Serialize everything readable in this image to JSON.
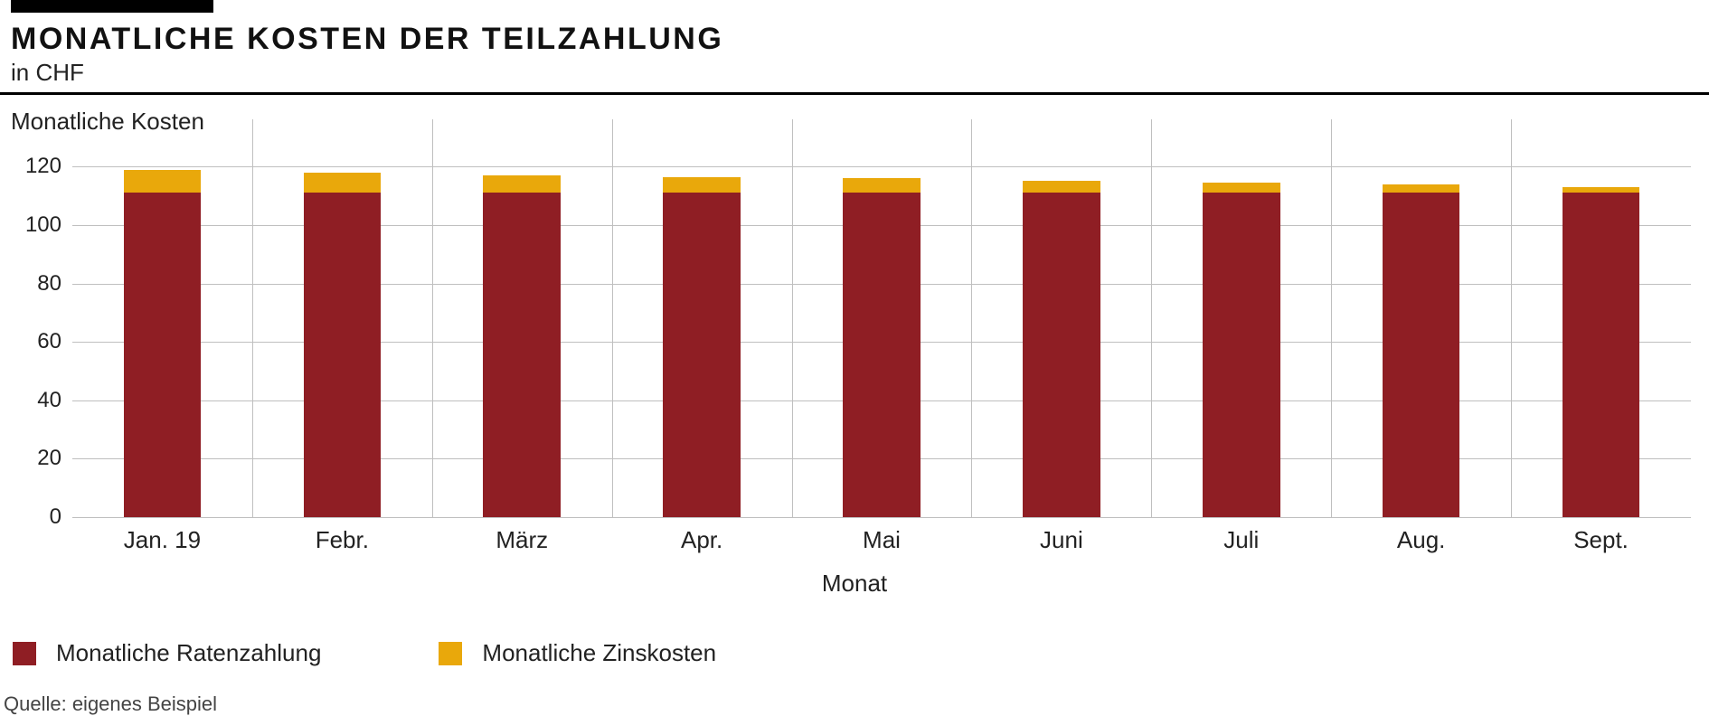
{
  "chart": {
    "type": "stacked-bar",
    "title": "MONATLICHE KOSTEN DER TEILZAHLUNG",
    "subtitle": "in CHF",
    "y_axis_title": "Monatliche Kosten",
    "x_axis_title": "Monat",
    "categories": [
      "Jan. 19",
      "Febr.",
      "März",
      "Apr.",
      "Mai",
      "Juni",
      "Juli",
      "Aug.",
      "Sept."
    ],
    "series": [
      {
        "name": "Monatliche Ratenzahlung",
        "color": "#8f1e24",
        "values": [
          111,
          111,
          111,
          111,
          111,
          111,
          111,
          111,
          111
        ]
      },
      {
        "name": "Monatliche Zinskosten",
        "color": "#e9a80b",
        "values": [
          8,
          7,
          6,
          5.5,
          5,
          4,
          3.5,
          3,
          2
        ]
      }
    ],
    "y": {
      "min": 0,
      "max": 130,
      "ticks": [
        0,
        20,
        40,
        60,
        80,
        100,
        120
      ]
    },
    "grid_color": "#bfbfbf",
    "background_color": "#ffffff",
    "bar_width_ratio": 0.43,
    "tick_fontsize": 24,
    "label_fontsize": 26,
    "title_fontsize": 34
  },
  "legend": [
    {
      "label": "Monatliche Ratenzahlung",
      "color": "#8f1e24"
    },
    {
      "label": "Monatliche Zinskosten",
      "color": "#e9a80b"
    }
  ],
  "source": "Quelle: eigenes Beispiel"
}
